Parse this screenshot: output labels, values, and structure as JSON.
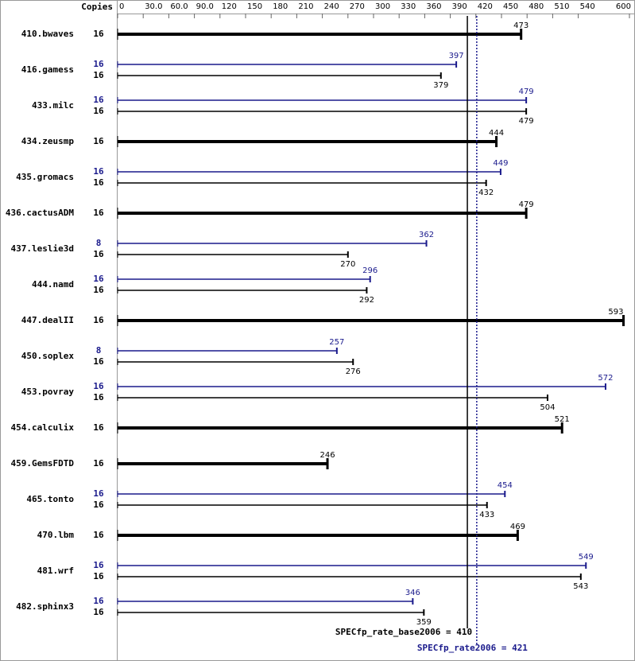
{
  "chart_data": {
    "type": "bar",
    "orientation": "horizontal",
    "copies_header": "Copies",
    "categories": [
      "410.bwaves",
      "416.gamess",
      "433.milc",
      "434.zeusmp",
      "435.gromacs",
      "436.cactusADM",
      "437.leslie3d",
      "444.namd",
      "447.dealII",
      "450.soplex",
      "453.povray",
      "454.calculix",
      "459.GemsFDTD",
      "465.tonto",
      "470.lbm",
      "481.wrf",
      "482.sphinx3"
    ],
    "series": [
      {
        "color": "#000000",
        "values": [
          473,
          379,
          479,
          444,
          432,
          479,
          270,
          292,
          593,
          276,
          504,
          521,
          246,
          433,
          469,
          543,
          359
        ],
        "copies": [
          16,
          16,
          16,
          16,
          16,
          16,
          16,
          16,
          16,
          16,
          16,
          16,
          16,
          16,
          16,
          16,
          16
        ]
      },
      {
        "color": "#1a1a8c",
        "values": [
          null,
          397,
          479,
          null,
          449,
          null,
          362,
          296,
          null,
          257,
          572,
          null,
          null,
          454,
          null,
          549,
          346
        ],
        "copies": [
          null,
          16,
          16,
          null,
          16,
          null,
          8,
          16,
          null,
          8,
          16,
          null,
          null,
          16,
          null,
          16,
          16
        ]
      }
    ],
    "xlim": [
      0,
      600
    ],
    "xticks": [
      0,
      {
        "value": 30,
        "label": "30.0"
      },
      {
        "value": 60,
        "label": "60.0"
      },
      {
        "value": 90,
        "label": "90.0"
      },
      120,
      150,
      180,
      210,
      240,
      270,
      300,
      330,
      360,
      390,
      420,
      450,
      480,
      510,
      540,
      600
    ],
    "reference_lines": [
      {
        "label": "SPECfp_rate_base2006 = 410",
        "value": 410,
        "color": "#000000",
        "style": "solid"
      },
      {
        "label": "SPECfp_rate2006 = 421",
        "value": 421,
        "color": "#1a1a8c",
        "style": "dotted"
      }
    ]
  }
}
